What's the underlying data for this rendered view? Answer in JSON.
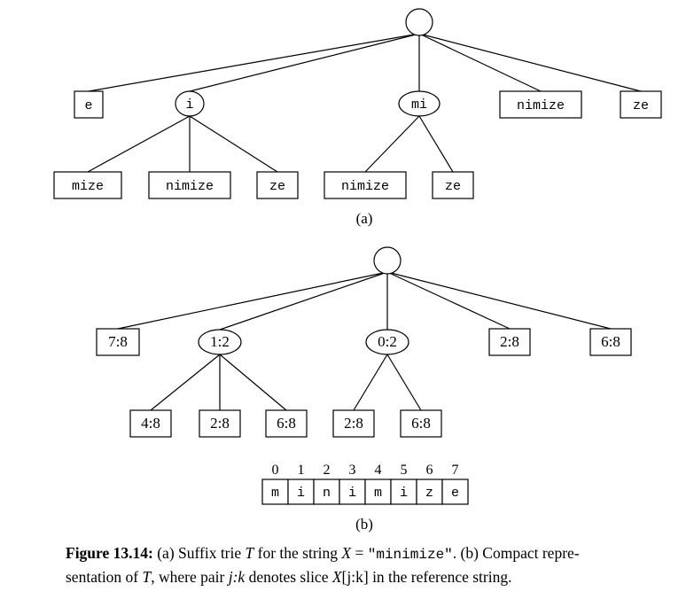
{
  "trie_a": {
    "label": "(a)",
    "nodes": [
      {
        "id": "root",
        "kind": "root",
        "text": ""
      },
      {
        "id": "e",
        "kind": "box",
        "text": "e"
      },
      {
        "id": "i",
        "kind": "oval",
        "text": "i"
      },
      {
        "id": "mi",
        "kind": "oval",
        "text": "mi"
      },
      {
        "id": "nimize",
        "kind": "box",
        "text": "nimize"
      },
      {
        "id": "ze",
        "kind": "box",
        "text": "ze"
      },
      {
        "id": "i_mize",
        "kind": "box",
        "text": "mize"
      },
      {
        "id": "i_nimize",
        "kind": "box",
        "text": "nimize"
      },
      {
        "id": "i_ze",
        "kind": "box",
        "text": "ze"
      },
      {
        "id": "mi_nimize",
        "kind": "box",
        "text": "nimize"
      },
      {
        "id": "mi_ze",
        "kind": "box",
        "text": "ze"
      }
    ],
    "edges": [
      [
        "root",
        "e"
      ],
      [
        "root",
        "i"
      ],
      [
        "root",
        "mi"
      ],
      [
        "root",
        "nimize"
      ],
      [
        "root",
        "ze"
      ],
      [
        "i",
        "i_mize"
      ],
      [
        "i",
        "i_nimize"
      ],
      [
        "i",
        "i_ze"
      ],
      [
        "mi",
        "mi_nimize"
      ],
      [
        "mi",
        "mi_ze"
      ]
    ]
  },
  "trie_b": {
    "label": "(b)",
    "nodes": [
      {
        "id": "root",
        "kind": "root",
        "text": ""
      },
      {
        "id": "n78",
        "kind": "box",
        "text": "7:8"
      },
      {
        "id": "n12",
        "kind": "oval",
        "text": "1:2"
      },
      {
        "id": "n02",
        "kind": "oval",
        "text": "0:2"
      },
      {
        "id": "n28",
        "kind": "box",
        "text": "2:8"
      },
      {
        "id": "n68",
        "kind": "box",
        "text": "6:8"
      },
      {
        "id": "a48",
        "kind": "box",
        "text": "4:8"
      },
      {
        "id": "a28",
        "kind": "box",
        "text": "2:8"
      },
      {
        "id": "a68",
        "kind": "box",
        "text": "6:8"
      },
      {
        "id": "b28",
        "kind": "box",
        "text": "2:8"
      },
      {
        "id": "b68",
        "kind": "box",
        "text": "6:8"
      }
    ],
    "edges": [
      [
        "root",
        "n78"
      ],
      [
        "root",
        "n12"
      ],
      [
        "root",
        "n02"
      ],
      [
        "root",
        "n28"
      ],
      [
        "root",
        "n68"
      ],
      [
        "n12",
        "a48"
      ],
      [
        "n12",
        "a28"
      ],
      [
        "n12",
        "a68"
      ],
      [
        "n02",
        "b28"
      ],
      [
        "n02",
        "b68"
      ]
    ]
  },
  "reference": {
    "indices": [
      "0",
      "1",
      "2",
      "3",
      "4",
      "5",
      "6",
      "7"
    ],
    "chars": [
      "m",
      "i",
      "n",
      "i",
      "m",
      "i",
      "z",
      "e"
    ]
  },
  "caption": {
    "figure_label": "Figure 13.14:",
    "part1": " (a) Suffix trie ",
    "T": "T",
    "part2": " for the string ",
    "X": "X",
    "eq": " = ",
    "string": "\"minimize\"",
    "part3": ". (b) Compact repre-",
    "line2a": "sentation of ",
    "T2": "T",
    "line2b": ", where pair ",
    "jk": "j:k",
    "line2c": " denotes slice ",
    "X2": "X",
    "slice": "[j:k]",
    "line2d": " in the reference string."
  }
}
